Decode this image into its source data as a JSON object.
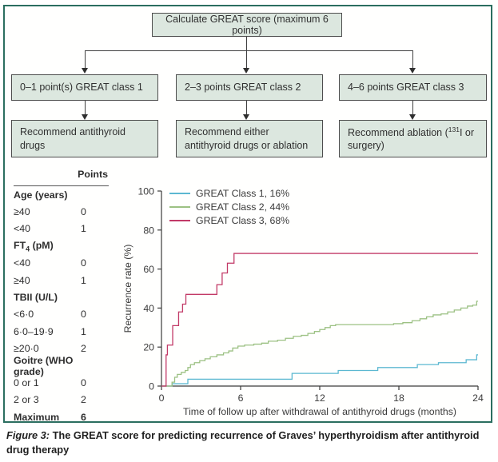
{
  "flowchart": {
    "root": "Calculate GREAT score (maximum 6 points)",
    "classes": [
      {
        "label": "0–1 point(s) GREAT class 1",
        "recommendation": "Recommend antithyroid drugs"
      },
      {
        "label": "2–3 points GREAT class 2",
        "recommendation": "Recommend either antithyroid drugs or ablation"
      },
      {
        "label": "4–6 points GREAT class 3",
        "recommendation_prefix": "Recommend ablation (",
        "recommendation_isotope": "131",
        "recommendation_suffix": "I or surgery)"
      }
    ]
  },
  "score_table": {
    "points_header": "Points",
    "rows": [
      {
        "label": "Age (years)",
        "points": "",
        "bold": true
      },
      {
        "label": "≥40",
        "points": "0"
      },
      {
        "label": "<40",
        "points": "1"
      },
      {
        "label": "FT4 (pM)",
        "points": "",
        "bold": true,
        "label_parts": {
          "pre": "FT",
          "sub": "4",
          "post": " (pM)"
        }
      },
      {
        "label": "<40",
        "points": "0"
      },
      {
        "label": "≥40",
        "points": "1"
      },
      {
        "label": "TBII (U/L)",
        "points": "",
        "bold": true
      },
      {
        "label": "<6·0",
        "points": "0"
      },
      {
        "label": "6·0–19·9",
        "points": "1"
      },
      {
        "label": "≥20·0",
        "points": "2"
      },
      {
        "label": "Goitre (WHO grade)",
        "points": "",
        "bold": true
      },
      {
        "label": "0 or 1",
        "points": "0"
      },
      {
        "label": "2 or 3",
        "points": "2"
      },
      {
        "label": "Maximum",
        "points": "6",
        "bold": true,
        "bold_points": true
      }
    ]
  },
  "chart_data": {
    "type": "line",
    "style": "step-after",
    "title": "",
    "xlabel": "Time of follow up after withdrawal of antithyroid drugs (months)",
    "ylabel": "Recurrence rate (%)",
    "xlim": [
      0,
      24
    ],
    "ylim": [
      0,
      100
    ],
    "xticks": [
      0,
      6,
      12,
      18,
      24
    ],
    "yticks": [
      0,
      20,
      40,
      60,
      80,
      100
    ],
    "grid": false,
    "legend_position": "top-left",
    "series": [
      {
        "name": "GREAT Class 1, 16%",
        "color": "#5cb8d1",
        "final_value": 16,
        "steps": [
          [
            0,
            0
          ],
          [
            0.8,
            1.2
          ],
          [
            2,
            3.5
          ],
          [
            9.9,
            6.5
          ],
          [
            13.4,
            8
          ],
          [
            16.4,
            9.5
          ],
          [
            19.4,
            11
          ],
          [
            21,
            12
          ],
          [
            23.1,
            13.5
          ],
          [
            23.9,
            16
          ],
          [
            24,
            16
          ]
        ]
      },
      {
        "name": "GREAT Class 2, 44%",
        "color": "#9cc183",
        "final_value": 44,
        "steps": [
          [
            0,
            0
          ],
          [
            0.8,
            2
          ],
          [
            1.0,
            4.5
          ],
          [
            1.2,
            6
          ],
          [
            1.5,
            7
          ],
          [
            1.8,
            8
          ],
          [
            2.0,
            9.5
          ],
          [
            2.2,
            11
          ],
          [
            2.5,
            12
          ],
          [
            2.9,
            13
          ],
          [
            3.3,
            14
          ],
          [
            3.7,
            15
          ],
          [
            4.2,
            16
          ],
          [
            4.7,
            17
          ],
          [
            5.1,
            18
          ],
          [
            5.4,
            19.5
          ],
          [
            5.8,
            20.5
          ],
          [
            6.3,
            21
          ],
          [
            7.0,
            21.5
          ],
          [
            7.6,
            22
          ],
          [
            8.1,
            23
          ],
          [
            8.8,
            23.5
          ],
          [
            9.4,
            24.5
          ],
          [
            10.0,
            25.5
          ],
          [
            10.6,
            26
          ],
          [
            11.1,
            27
          ],
          [
            11.6,
            28
          ],
          [
            12.0,
            29
          ],
          [
            12.4,
            30
          ],
          [
            12.8,
            31
          ],
          [
            13.2,
            31.5
          ],
          [
            17.6,
            32
          ],
          [
            18.3,
            32.5
          ],
          [
            19.0,
            33.5
          ],
          [
            19.6,
            34.5
          ],
          [
            20.1,
            35.5
          ],
          [
            20.6,
            36.5
          ],
          [
            21.2,
            37
          ],
          [
            21.7,
            38
          ],
          [
            22.2,
            39
          ],
          [
            22.7,
            40
          ],
          [
            23.2,
            41
          ],
          [
            23.6,
            41.5
          ],
          [
            23.9,
            43.5
          ],
          [
            24,
            43.5
          ]
        ]
      },
      {
        "name": "GREAT Class 3, 68%",
        "color": "#c23a67",
        "final_value": 68,
        "steps": [
          [
            0,
            0
          ],
          [
            0.35,
            16
          ],
          [
            0.45,
            21
          ],
          [
            0.85,
            31
          ],
          [
            1.3,
            38
          ],
          [
            1.6,
            42
          ],
          [
            1.85,
            47
          ],
          [
            4.2,
            52
          ],
          [
            4.6,
            58
          ],
          [
            5.0,
            63
          ],
          [
            5.5,
            68
          ],
          [
            24,
            68
          ]
        ]
      }
    ]
  },
  "caption": {
    "label": "Figure 3:",
    "text": "The GREAT score for predicting recurrence of Graves’ hyperthyroidism after antithyroid drug therapy"
  }
}
